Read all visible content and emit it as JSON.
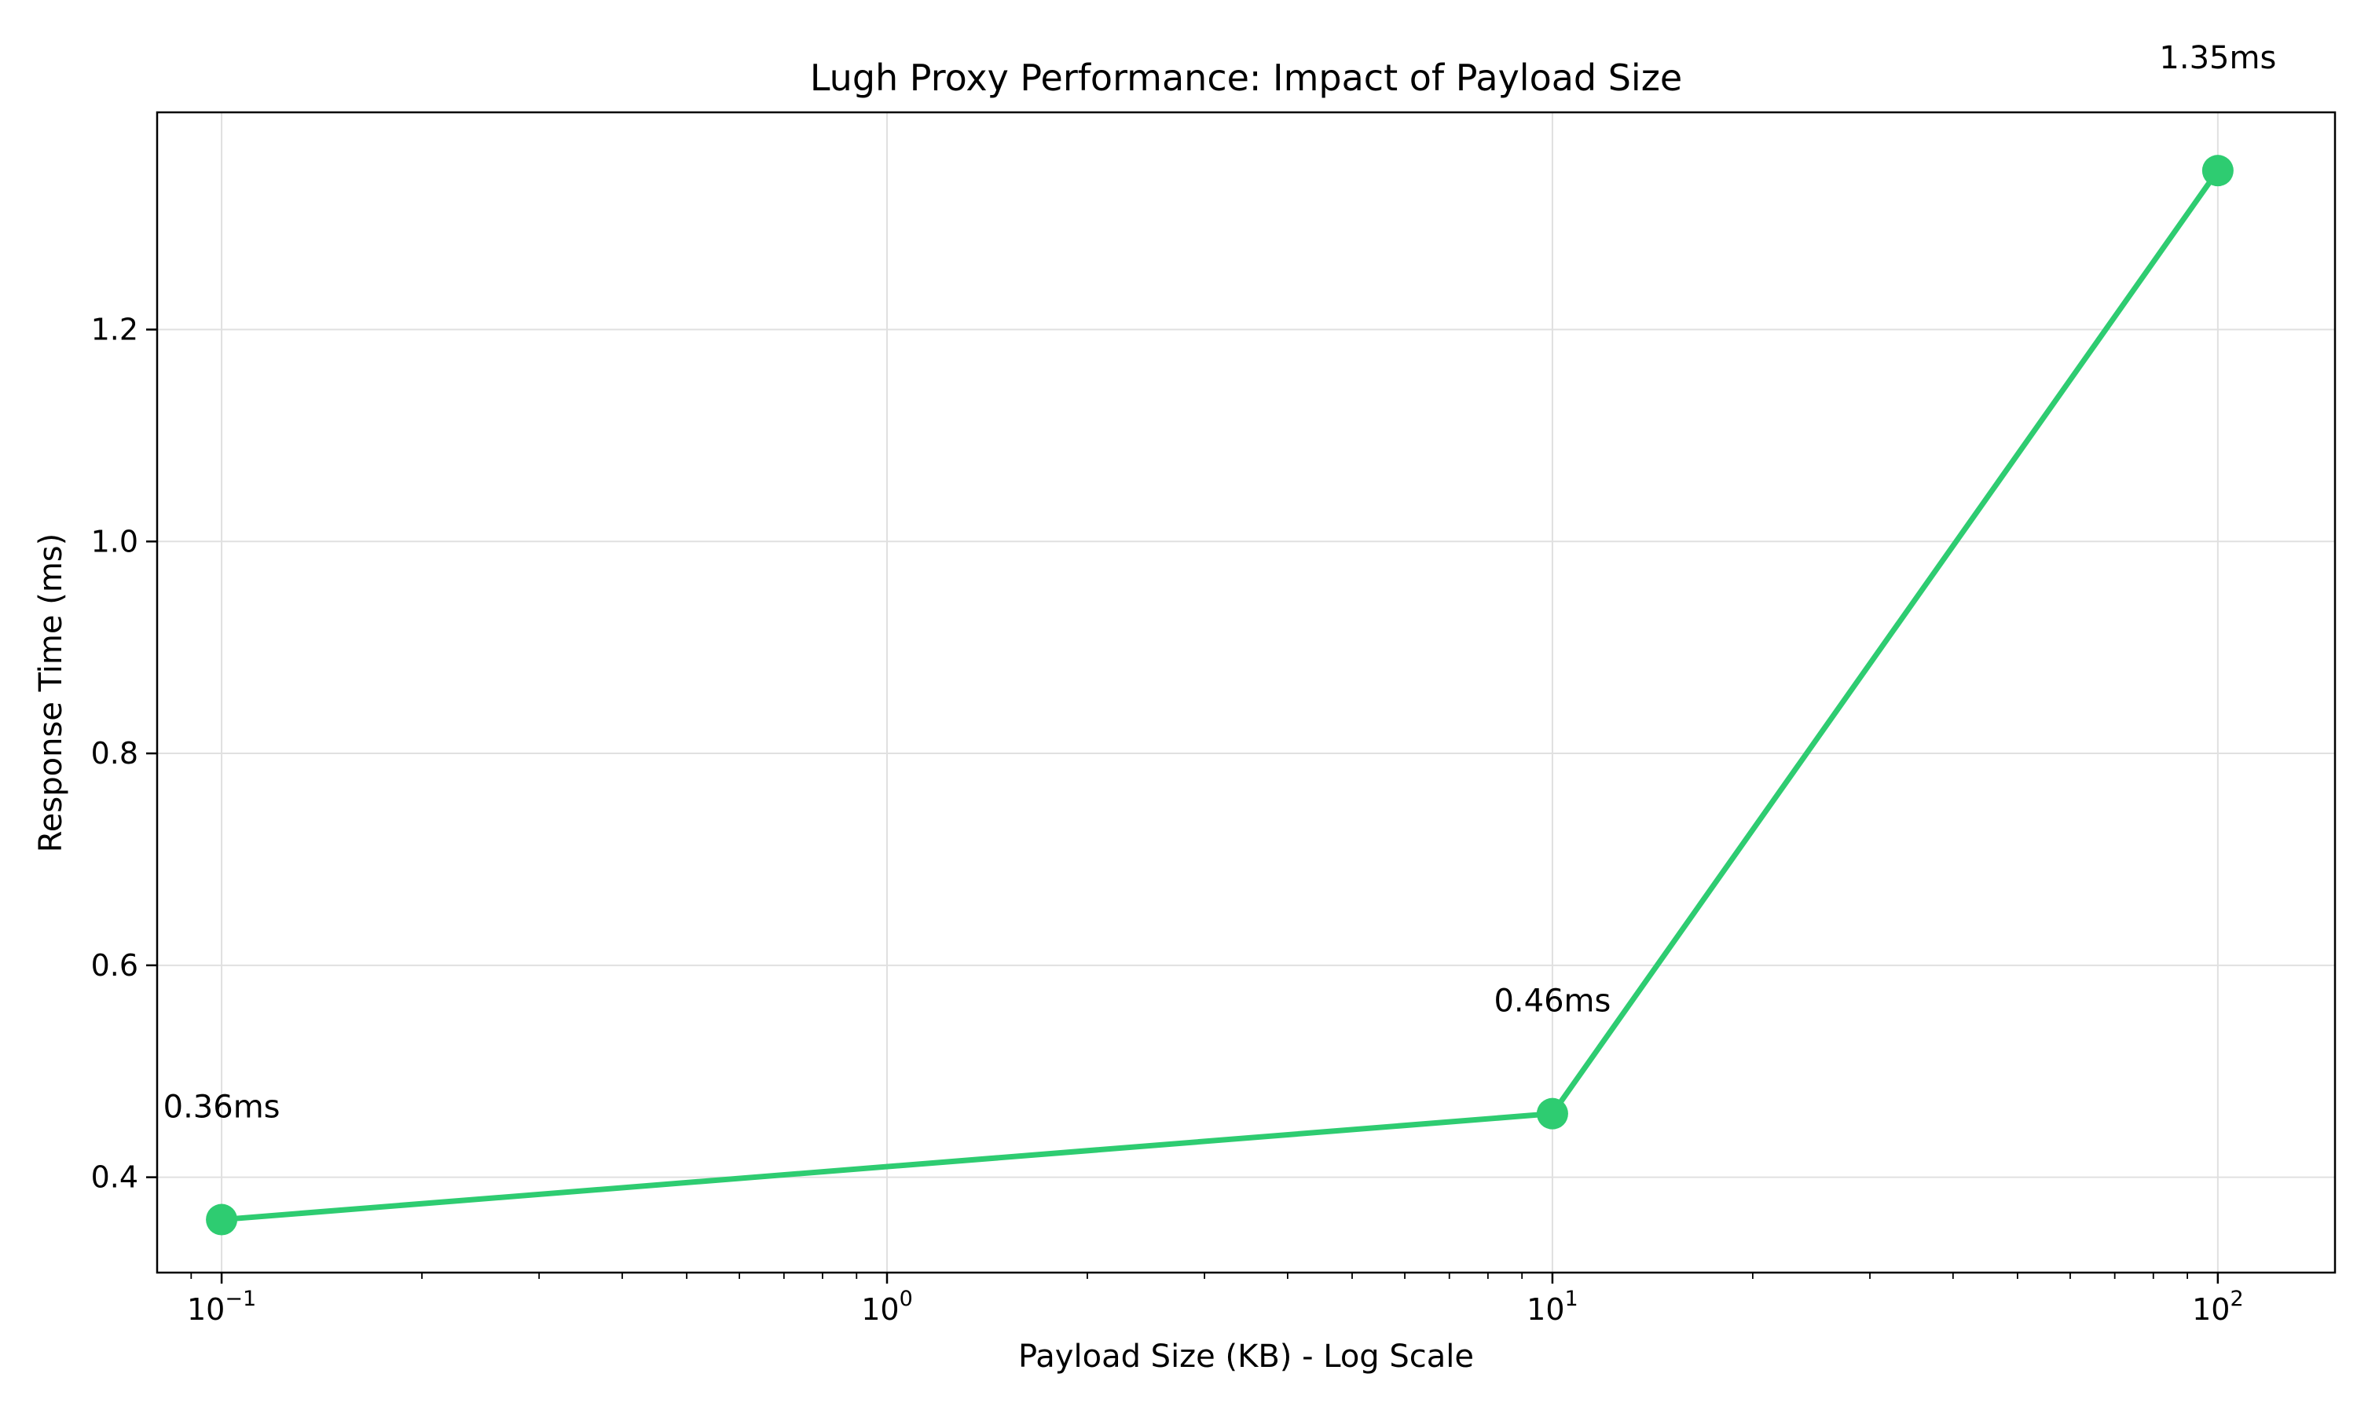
{
  "chart_data": {
    "type": "line",
    "title": "Lugh Proxy Performance: Impact of Payload Size",
    "xlabel": "Payload Size (KB) - Log Scale",
    "ylabel": "Response Time (ms)",
    "x_scale": "log",
    "grid": true,
    "series": [
      {
        "color": "#2ecc71",
        "x": [
          0.1,
          10,
          100
        ],
        "y": [
          0.36,
          0.46,
          1.35
        ],
        "labels": [
          "0.36ms",
          "0.46ms",
          "1.35ms"
        ]
      }
    ],
    "xlim": [
      0.08,
      150
    ],
    "ylim": [
      0.31,
      1.405
    ],
    "x_ticks": [
      {
        "base": "10",
        "exp": "−1",
        "value": 0.1
      },
      {
        "base": "10",
        "exp": "0",
        "value": 1
      },
      {
        "base": "10",
        "exp": "1",
        "value": 10
      },
      {
        "base": "10",
        "exp": "2",
        "value": 100
      }
    ],
    "y_ticks": [
      {
        "label": "0.4",
        "value": 0.4
      },
      {
        "label": "0.6",
        "value": 0.6
      },
      {
        "label": "0.8",
        "value": 0.8
      },
      {
        "label": "1.0",
        "value": 1.0
      },
      {
        "label": "1.2",
        "value": 1.2
      }
    ]
  }
}
